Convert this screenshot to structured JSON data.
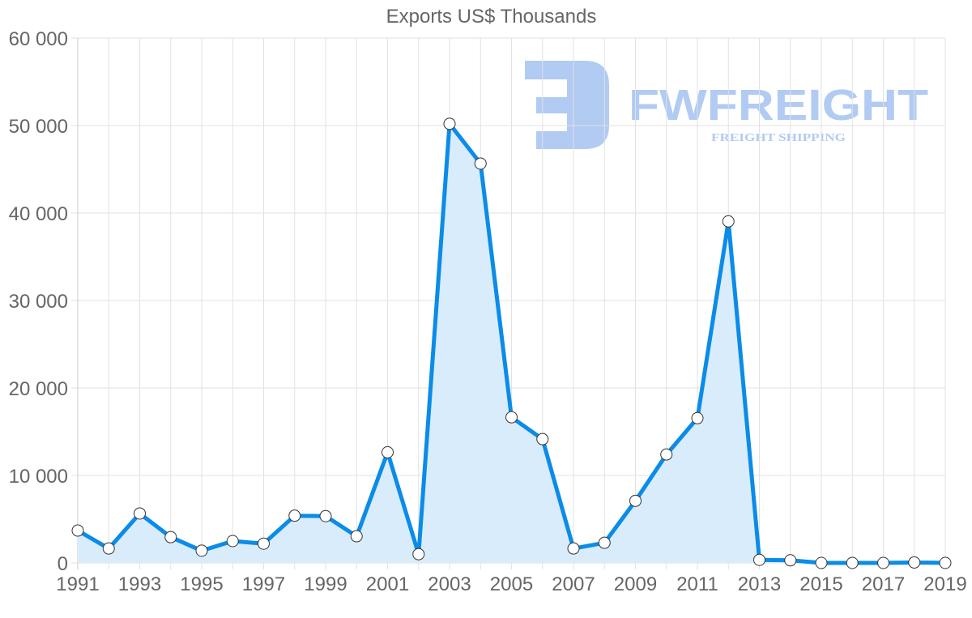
{
  "chart_data": {
    "type": "area",
    "title": "Exports US$ Thousands",
    "xlabel": "",
    "ylabel": "",
    "x": [
      1991,
      1992,
      1993,
      1994,
      1995,
      1996,
      1997,
      1998,
      1999,
      2000,
      2001,
      2002,
      2003,
      2004,
      2005,
      2006,
      2007,
      2008,
      2009,
      2010,
      2011,
      2012,
      2013,
      2014,
      2015,
      2016,
      2017,
      2018,
      2019
    ],
    "series": [
      {
        "name": "Exports US$ Thousands",
        "values": [
          3700,
          1650,
          5650,
          2950,
          1400,
          2500,
          2200,
          5400,
          5350,
          3050,
          12650,
          1000,
          50200,
          45650,
          16650,
          14150,
          1650,
          2300,
          7100,
          12400,
          16550,
          39050,
          350,
          300,
          0,
          0,
          0,
          50,
          0
        ],
        "color": "#0a8ce8",
        "fill": "#d9ecfc"
      }
    ],
    "ylim": [
      0,
      60000
    ],
    "yticks": [
      "0",
      "10 000",
      "20 000",
      "30 000",
      "40 000",
      "50 000",
      "60 000"
    ],
    "xticks": [
      "1991",
      "1993",
      "1995",
      "1997",
      "1999",
      "2001",
      "2003",
      "2005",
      "2007",
      "2009",
      "2011",
      "2013",
      "2015",
      "2017",
      "2019"
    ],
    "grid": true,
    "legend": "none"
  },
  "watermark": {
    "brand": "FWFREIGHT",
    "tagline": "FREIGHT SHIPPING",
    "color": "#b1cbf3"
  }
}
